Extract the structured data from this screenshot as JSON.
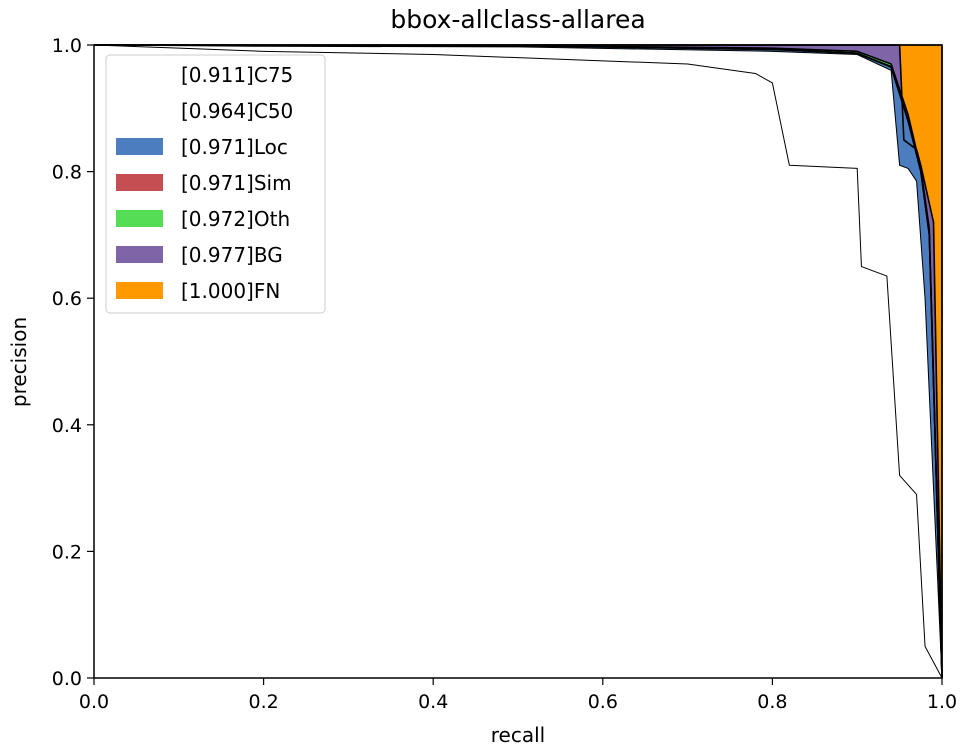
{
  "chart_data": {
    "type": "area",
    "title": "bbox-allclass-allarea",
    "xlabel": "recall",
    "ylabel": "precision",
    "xlim": [
      0,
      1
    ],
    "ylim": [
      0,
      1
    ],
    "grid": false,
    "legend_position": "upper-left",
    "x_ticks": [
      "0.0",
      "0.2",
      "0.4",
      "0.6",
      "0.8",
      "1.0"
    ],
    "y_ticks": [
      "0.0",
      "0.2",
      "0.4",
      "0.6",
      "0.8",
      "1.0"
    ],
    "series": [
      {
        "name": "C75",
        "label": "[0.911]C75",
        "color": "#ffffff",
        "points": [
          [
            0,
            1.0
          ],
          [
            0.1,
            0.995
          ],
          [
            0.2,
            0.99
          ],
          [
            0.4,
            0.985
          ],
          [
            0.6,
            0.975
          ],
          [
            0.7,
            0.97
          ],
          [
            0.78,
            0.955
          ],
          [
            0.8,
            0.94
          ],
          [
            0.82,
            0.81
          ],
          [
            0.9,
            0.805
          ],
          [
            0.905,
            0.65
          ],
          [
            0.935,
            0.635
          ],
          [
            0.95,
            0.32
          ],
          [
            0.97,
            0.29
          ],
          [
            0.98,
            0.05
          ],
          [
            1.0,
            0.0
          ]
        ]
      },
      {
        "name": "C50",
        "label": "[0.964]C50",
        "color": "#ffffff",
        "points": [
          [
            0,
            1.0
          ],
          [
            0.2,
            0.998
          ],
          [
            0.5,
            0.997
          ],
          [
            0.8,
            0.99
          ],
          [
            0.9,
            0.985
          ],
          [
            0.94,
            0.96
          ],
          [
            0.95,
            0.81
          ],
          [
            0.96,
            0.805
          ],
          [
            0.97,
            0.785
          ],
          [
            0.98,
            0.6
          ],
          [
            1.0,
            0.0
          ]
        ]
      },
      {
        "name": "Loc",
        "label": "[0.971]Loc",
        "color": "#4c7dbf",
        "points": [
          [
            0,
            1.0
          ],
          [
            0.5,
            0.999
          ],
          [
            0.8,
            0.993
          ],
          [
            0.9,
            0.987
          ],
          [
            0.94,
            0.965
          ],
          [
            0.96,
            0.88
          ],
          [
            0.975,
            0.8
          ],
          [
            0.985,
            0.7
          ],
          [
            1.0,
            0.0
          ]
        ]
      },
      {
        "name": "Sim",
        "label": "[0.971]Sim",
        "color": "#c44e52",
        "points": [
          [
            0,
            1.0
          ],
          [
            0.5,
            0.999
          ],
          [
            0.8,
            0.993
          ],
          [
            0.9,
            0.987
          ],
          [
            0.94,
            0.966
          ],
          [
            0.96,
            0.881
          ],
          [
            0.975,
            0.801
          ],
          [
            0.985,
            0.701
          ],
          [
            1.0,
            0.0
          ]
        ]
      },
      {
        "name": "Oth",
        "label": "[0.972]Oth",
        "color": "#55dd55",
        "points": [
          [
            0,
            1.0
          ],
          [
            0.5,
            0.999
          ],
          [
            0.8,
            0.995
          ],
          [
            0.9,
            0.99
          ],
          [
            0.94,
            0.97
          ],
          [
            0.96,
            0.89
          ],
          [
            0.975,
            0.805
          ],
          [
            0.985,
            0.71
          ],
          [
            1.0,
            0.0
          ]
        ]
      },
      {
        "name": "BG",
        "label": "[0.977]BG",
        "color": "#8064a8",
        "points": [
          [
            0,
            1.0
          ],
          [
            0.5,
            1.0
          ],
          [
            0.8,
            1.0
          ],
          [
            0.9,
            1.0
          ],
          [
            0.95,
            1.0
          ],
          [
            0.955,
            0.85
          ],
          [
            0.97,
            0.835
          ],
          [
            0.975,
            0.81
          ],
          [
            0.99,
            0.72
          ],
          [
            1.0,
            0.0
          ]
        ]
      },
      {
        "name": "FN",
        "label": "[1.000]FN",
        "color": "#ff9900",
        "points": [
          [
            0,
            1.0
          ],
          [
            1.0,
            1.0
          ],
          [
            1.0,
            0.0
          ]
        ]
      }
    ]
  }
}
